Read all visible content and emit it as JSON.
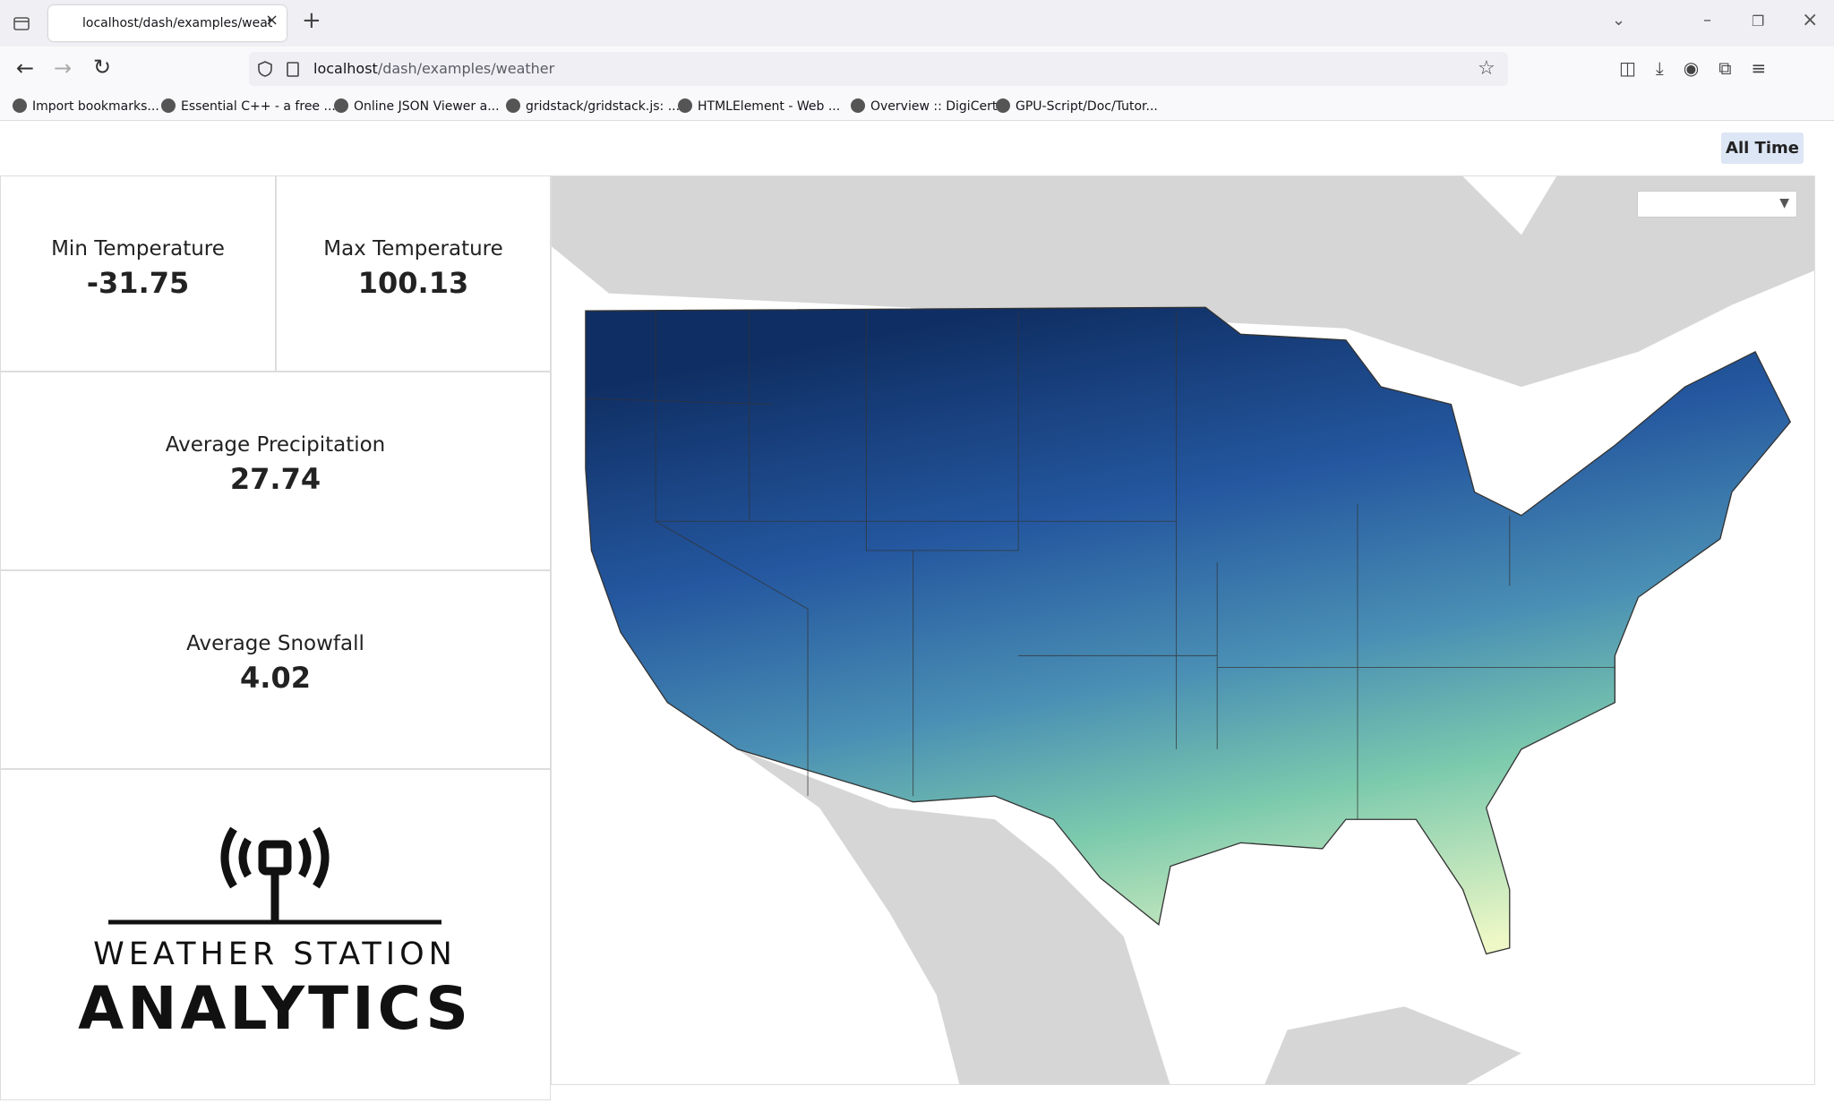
{
  "browser": {
    "tab_title": "localhost/dash/examples/weat",
    "url_host": "localhost",
    "url_path": "/dash/examples/weather",
    "bookmarks": [
      "Import bookmarks...",
      "Essential C++ - a free ...",
      "Online JSON Viewer a...",
      "gridstack/gridstack.js: ...",
      "HTMLElement - Web ...",
      "Overview :: DigiCert",
      "GPU-Script/Doc/Tutor..."
    ]
  },
  "toolbar": {
    "button": "All Time"
  },
  "kpis": [
    {
      "label": "Min Temperature",
      "value": -31.75
    },
    {
      "label": "Max Temperature",
      "value": 100.13
    },
    {
      "label": "Average Precipitation",
      "value": 27.74
    },
    {
      "label": "Average Snowfall",
      "value": 4.02
    }
  ],
  "logo": {
    "line1": "WEATHER STATION",
    "line2": "ANALYTICS"
  }
}
